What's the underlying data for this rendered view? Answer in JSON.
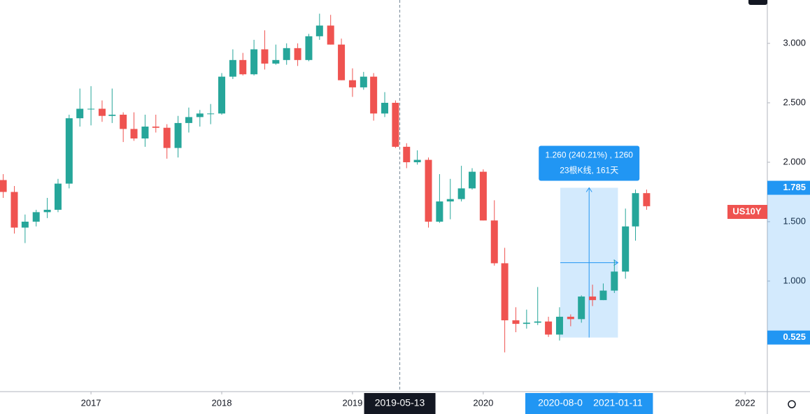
{
  "chart_data": {
    "type": "candlestick",
    "symbol": "US10Y",
    "x": [
      "2016-05-01",
      "2016-06-01",
      "2016-07-01",
      "2016-08-01",
      "2016-09-01",
      "2016-10-01",
      "2016-11-01",
      "2016-12-01",
      "2017-01-01",
      "2017-02-01",
      "2017-03-01",
      "2017-04-01",
      "2017-05-01",
      "2017-06-01",
      "2017-07-01",
      "2017-08-01",
      "2017-09-01",
      "2017-10-01",
      "2017-11-01",
      "2017-12-01",
      "2018-01-01",
      "2018-02-01",
      "2018-03-01",
      "2018-04-01",
      "2018-05-01",
      "2018-06-01",
      "2018-07-01",
      "2018-08-01",
      "2018-09-01",
      "2018-10-01",
      "2018-11-01",
      "2018-12-01",
      "2019-01-01",
      "2019-02-01",
      "2019-03-01",
      "2019-04-01",
      "2019-05-01",
      "2019-06-01",
      "2019-07-01",
      "2019-08-01",
      "2019-09-01",
      "2019-10-01",
      "2019-11-01",
      "2019-12-01",
      "2020-01-01",
      "2020-02-01",
      "2020-03-01",
      "2020-04-01",
      "2020-05-01",
      "2020-06-01",
      "2020-07-01",
      "2020-08-01",
      "2020-09-01",
      "2020-10-01",
      "2020-11-01",
      "2020-12-01",
      "2021-01-01",
      "2021-02-01",
      "2021-03-01",
      "2021-04-01"
    ],
    "open": [
      1.85,
      1.75,
      1.45,
      1.5,
      1.58,
      1.6,
      1.82,
      2.37,
      2.45,
      2.45,
      2.39,
      2.4,
      2.28,
      2.2,
      2.3,
      2.29,
      2.12,
      2.33,
      2.38,
      2.41,
      2.41,
      2.72,
      2.86,
      2.74,
      2.95,
      2.83,
      2.86,
      2.96,
      2.86,
      3.06,
      3.15,
      2.99,
      2.69,
      2.63,
      2.72,
      2.41,
      2.5,
      2.13,
      2.0,
      2.02,
      1.5,
      1.67,
      1.69,
      1.78,
      1.92,
      1.51,
      1.15,
      0.67,
      0.64,
      0.65,
      0.66,
      0.55,
      0.7,
      0.68,
      0.87,
      0.84,
      0.92,
      1.08,
      1.46,
      1.74
    ],
    "high": [
      1.9,
      1.8,
      1.56,
      1.6,
      1.7,
      1.86,
      2.4,
      2.62,
      2.64,
      2.52,
      2.62,
      2.42,
      2.42,
      2.4,
      2.4,
      2.32,
      2.39,
      2.46,
      2.44,
      2.49,
      2.75,
      2.95,
      2.92,
      3.03,
      3.11,
      2.99,
      3.0,
      3.0,
      3.08,
      3.25,
      3.24,
      3.04,
      2.79,
      2.76,
      2.75,
      2.59,
      2.52,
      2.16,
      2.1,
      2.04,
      1.9,
      1.86,
      1.97,
      1.95,
      1.94,
      1.68,
      1.28,
      0.78,
      0.76,
      0.95,
      0.7,
      0.78,
      0.72,
      0.88,
      0.97,
      0.98,
      1.18,
      1.61,
      1.77,
      1.77
    ],
    "low": [
      1.7,
      1.4,
      1.32,
      1.46,
      1.53,
      1.58,
      1.78,
      2.3,
      2.31,
      2.34,
      2.33,
      2.17,
      2.18,
      2.13,
      2.25,
      2.03,
      2.04,
      2.25,
      2.3,
      2.32,
      2.4,
      2.7,
      2.73,
      2.73,
      2.78,
      2.82,
      2.82,
      2.81,
      2.85,
      3.03,
      2.99,
      2.69,
      2.55,
      2.61,
      2.35,
      2.38,
      2.12,
      1.95,
      1.98,
      1.45,
      1.49,
      1.52,
      1.67,
      1.77,
      1.51,
      1.13,
      0.4,
      0.57,
      0.6,
      0.63,
      0.53,
      0.5,
      0.62,
      0.65,
      0.79,
      0.84,
      0.9,
      1.02,
      1.34,
      1.6
    ],
    "close": [
      1.75,
      1.45,
      1.5,
      1.58,
      1.6,
      1.82,
      2.37,
      2.45,
      2.45,
      2.39,
      2.4,
      2.28,
      2.2,
      2.3,
      2.29,
      2.12,
      2.33,
      2.38,
      2.41,
      2.41,
      2.72,
      2.86,
      2.74,
      2.95,
      2.83,
      2.86,
      2.96,
      2.86,
      3.06,
      3.15,
      2.99,
      2.69,
      2.63,
      2.72,
      2.41,
      2.5,
      2.13,
      2.0,
      2.02,
      1.5,
      1.67,
      1.69,
      1.78,
      1.92,
      1.51,
      1.15,
      0.67,
      0.64,
      0.65,
      0.66,
      0.55,
      0.7,
      0.68,
      0.87,
      0.84,
      0.92,
      1.08,
      1.46,
      1.74,
      1.63
    ],
    "up_color": "#26a69a",
    "down_color": "#ef5350",
    "xlim": [
      "2016-04-22",
      "2022-03-04"
    ],
    "xticks": [
      {
        "value": "2017-01-01",
        "label": "2017"
      },
      {
        "value": "2018-01-01",
        "label": "2018"
      },
      {
        "value": "2019-01-01",
        "label": "2019"
      },
      {
        "value": "2020-01-01",
        "label": "2020"
      },
      {
        "value": "2022-01-01",
        "label": "2022"
      }
    ],
    "ylim": [
      0.07,
      3.365
    ],
    "yticks": [
      {
        "value": 3,
        "label": "3.000"
      },
      {
        "value": 2.5,
        "label": "2.500"
      },
      {
        "value": 2,
        "label": "2.000"
      },
      {
        "value": 1.5,
        "label": "1.500"
      },
      {
        "value": 1,
        "label": "1.000"
      }
    ],
    "crosshair": {
      "value": "2019-05-13",
      "label": "2019-05-13"
    },
    "measure": {
      "start": {
        "value": "2020-08-03",
        "label": "2020-08-0"
      },
      "end": {
        "value": "2021-01-11",
        "label": "2021-01-11"
      },
      "top": 1.785,
      "bottom": 0.525,
      "text": [
        "1.260 (240.21%) , 1260",
        "23根K线, 161天"
      ]
    }
  }
}
